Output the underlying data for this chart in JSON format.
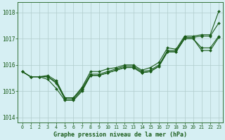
{
  "title": "Graphe pression niveau de la mer (hPa)",
  "background_color": "#d6eff3",
  "grid_color": "#b0cccc",
  "line_color": "#1a5c1a",
  "x_ticks": [
    0,
    1,
    2,
    3,
    4,
    5,
    6,
    7,
    8,
    9,
    10,
    11,
    12,
    13,
    14,
    15,
    16,
    17,
    18,
    19,
    20,
    21,
    22,
    23
  ],
  "ylim": [
    1013.8,
    1018.4
  ],
  "yticks": [
    1014,
    1015,
    1016,
    1017,
    1018
  ],
  "series1": [
    1015.75,
    1015.55,
    1015.55,
    1015.6,
    1015.4,
    1014.75,
    1014.75,
    1015.15,
    1015.75,
    1015.75,
    1015.85,
    1015.9,
    1016.0,
    1016.0,
    1015.8,
    1015.9,
    1016.1,
    1016.65,
    1016.6,
    1017.1,
    1017.1,
    1017.15,
    1017.15,
    1018.05
  ],
  "series2": [
    1015.75,
    1015.55,
    1015.55,
    1015.55,
    1015.35,
    1014.75,
    1014.75,
    1015.1,
    1015.65,
    1015.65,
    1015.75,
    1015.85,
    1015.95,
    1015.95,
    1015.75,
    1015.8,
    1016.0,
    1016.55,
    1016.55,
    1017.05,
    1017.05,
    1017.1,
    1017.1,
    1017.6
  ],
  "series3": [
    1015.75,
    1015.55,
    1015.55,
    1015.55,
    1015.3,
    1014.7,
    1014.7,
    1015.05,
    1015.6,
    1015.6,
    1015.7,
    1015.8,
    1015.9,
    1015.9,
    1015.7,
    1015.75,
    1015.95,
    1016.5,
    1016.5,
    1017.0,
    1017.0,
    1016.65,
    1016.65,
    1017.1
  ],
  "series4": [
    1015.75,
    1015.55,
    1015.55,
    1015.45,
    1015.1,
    1014.65,
    1014.65,
    1015.0,
    1015.6,
    1015.6,
    1015.7,
    1015.8,
    1015.9,
    1015.9,
    1015.7,
    1015.75,
    1015.95,
    1016.5,
    1016.5,
    1017.0,
    1017.0,
    1016.55,
    1016.55,
    1017.05
  ]
}
